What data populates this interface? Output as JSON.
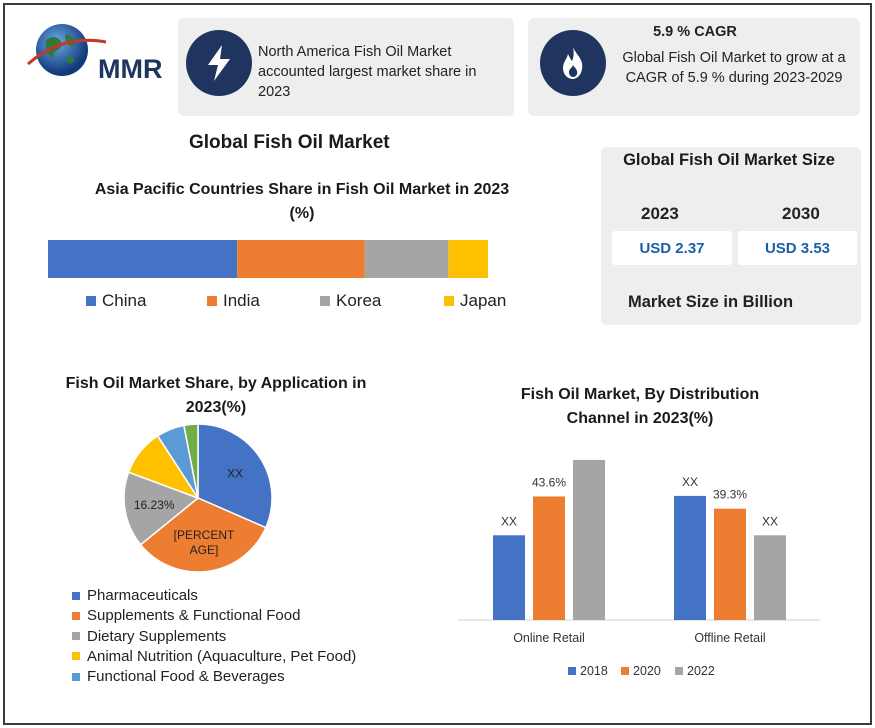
{
  "logo": {
    "text": "MMR"
  },
  "highlight_left": {
    "text": "North America Fish Oil Market accounted largest market share in 2023",
    "icon": "lightning-icon"
  },
  "highlight_right": {
    "title": "5.9 % CAGR",
    "text": "Global Fish Oil Market to grow at a CAGR of 5.9 % during 2023-2029",
    "icon": "flame-icon"
  },
  "main_title": "Global Fish Oil Market",
  "market_size": {
    "title": "Global Fish Oil Market Size",
    "year_a": "2023",
    "year_b": "2030",
    "value_a": "USD 2.37",
    "value_b": "USD 3.53",
    "footer": "Market Size in Billion"
  },
  "colors": {
    "blue": "#4472c4",
    "orange": "#ed7d31",
    "gray": "#a5a5a5",
    "yellow": "#ffc000",
    "lightblue": "#5b9bd5",
    "green": "#70ad47",
    "navy": "#1f3560"
  },
  "chart_data": [
    {
      "type": "bar",
      "orientation": "stacked-horizontal",
      "title": "Asia Pacific Countries Share in Fish Oil Market in 2023 (%)",
      "series": [
        {
          "name": "China",
          "values": [
            43
          ]
        },
        {
          "name": "India",
          "values": [
            29
          ]
        },
        {
          "name": "Korea",
          "values": [
            19
          ]
        },
        {
          "name": "Japan",
          "values": [
            9
          ]
        }
      ],
      "legend": "bottom"
    },
    {
      "type": "pie",
      "title": "Fish Oil Market Share, by Application in 2023(%)",
      "slices": [
        {
          "name": "Pharmaceuticals",
          "value": 31,
          "label": "XX"
        },
        {
          "name": "Supplements & Functional Food",
          "value": 32,
          "label": "[PERCENT AGE]"
        },
        {
          "name": "Dietary Supplements",
          "value": 16.23,
          "label": "16.23%"
        },
        {
          "name": "Animal Nutrition (Aquaculture, Pet Food)",
          "value": 10,
          "label": ""
        },
        {
          "name": "Functional Food & Beverages",
          "value": 6,
          "label": ""
        },
        {
          "name": "",
          "value": 3,
          "label": ""
        }
      ],
      "legend_entries": [
        "Pharmaceuticals",
        "Supplements & Functional Food",
        "Dietary Supplements",
        "Animal Nutrition (Aquaculture, Pet Food)",
        "Functional Food & Beverages"
      ],
      "legend": "bottom"
    },
    {
      "type": "bar",
      "title": "Fish Oil Market, By Distribution Channel in 2023(%)",
      "categories": [
        "Online Retail",
        "Offline Retail"
      ],
      "series": [
        {
          "name": "2018",
          "values": [
            29.9,
            43.8
          ],
          "labels": [
            "XX",
            "XX"
          ]
        },
        {
          "name": "2020",
          "values": [
            43.6,
            39.3
          ],
          "labels": [
            "43.6%",
            "39.3%"
          ]
        },
        {
          "name": "2022",
          "values": [
            56.5,
            29.9
          ],
          "labels": [
            "56.5%",
            "XX"
          ]
        }
      ],
      "ylim": [
        0,
        60
      ],
      "grid": false,
      "legend": "bottom"
    }
  ]
}
